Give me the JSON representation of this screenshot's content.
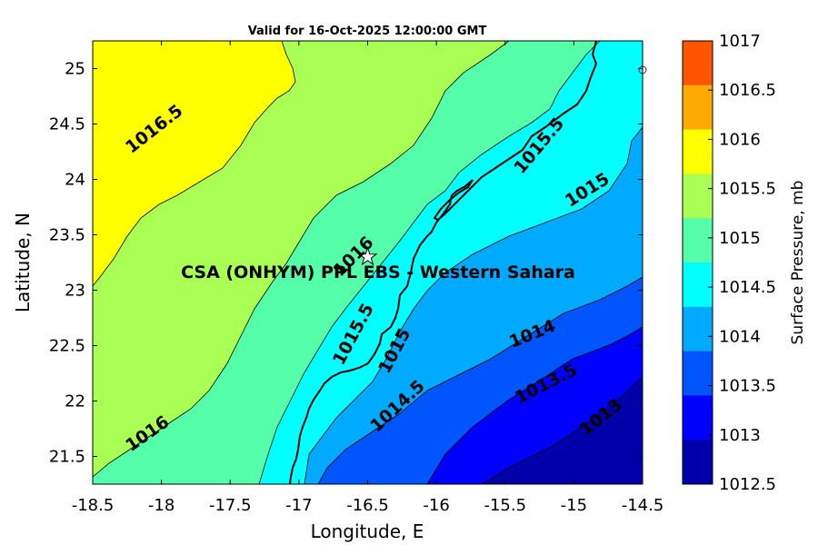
{
  "title": "Valid for 16-Oct-2025 12:00:00 GMT",
  "site_label": "CSA (ONHYM) PPL EBS  - Western Sahara",
  "x_axis": {
    "label": "Longitude, E",
    "range": [
      -18.5,
      -14.5
    ],
    "ticks": [
      "-18.5",
      "-18",
      "-17.5",
      "-17",
      "-16.5",
      "-16",
      "-15.5",
      "-15",
      "-14.5"
    ]
  },
  "y_axis": {
    "label": "Latitude, N",
    "range": [
      21.25,
      25.25
    ],
    "ticks": [
      "21.5",
      "22",
      "22.5",
      "23",
      "23.5",
      "24",
      "24.5",
      "25"
    ]
  },
  "colorbar": {
    "label": "Surface Pressure, mb",
    "ticks": [
      "1017",
      "1016.5",
      "1016",
      "1015.5",
      "1015",
      "1014.5",
      "1014",
      "1013.5",
      "1013",
      "1012.5"
    ],
    "colors": [
      "#ff5500",
      "#ffaa00",
      "#ffff00",
      "#aaff55",
      "#55ffaa",
      "#00ffff",
      "#00aaff",
      "#0055ff",
      "#0000ff",
      "#0000aa"
    ]
  },
  "contour_labels": [
    {
      "text": "1016.5",
      "lon": -18.05,
      "lat": 24.45,
      "angle": -38
    },
    {
      "text": "1016",
      "lon": -16.6,
      "lat": 23.3,
      "angle": -45
    },
    {
      "text": "1016",
      "lon": -18.1,
      "lat": 21.7,
      "angle": -35
    },
    {
      "text": "1015.5",
      "lon": -15.25,
      "lat": 24.3,
      "angle": -50
    },
    {
      "text": "1015.5",
      "lon": -16.6,
      "lat": 22.6,
      "angle": -62
    },
    {
      "text": "1015",
      "lon": -14.9,
      "lat": 23.9,
      "angle": -32
    },
    {
      "text": "1015",
      "lon": -16.3,
      "lat": 22.45,
      "angle": -62
    },
    {
      "text": "1014.5",
      "lon": -16.28,
      "lat": 21.95,
      "angle": -43
    },
    {
      "text": "1014",
      "lon": -15.3,
      "lat": 22.6,
      "angle": -22
    },
    {
      "text": "1013.5",
      "lon": -15.2,
      "lat": 22.15,
      "angle": -27
    },
    {
      "text": "1013",
      "lon": -14.8,
      "lat": 21.85,
      "angle": -38
    }
  ],
  "site": {
    "lon": -16.5,
    "lat": 23.3
  }
}
